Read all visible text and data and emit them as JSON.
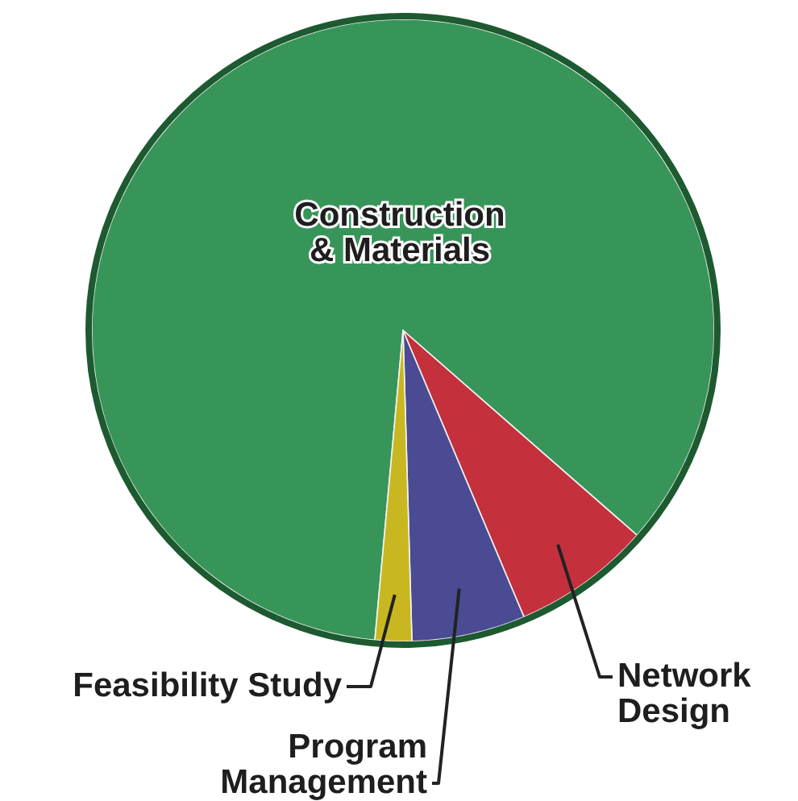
{
  "chart_data": {
    "type": "pie",
    "categories": [
      "Construction & Materials",
      "Network Design",
      "Program Management",
      "Feasibility Study"
    ],
    "values": [
      85,
      7.2,
      5.9,
      1.9
    ],
    "colors": [
      "#38955a",
      "#c4303c",
      "#4a4b93",
      "#c9b722"
    ]
  }
}
